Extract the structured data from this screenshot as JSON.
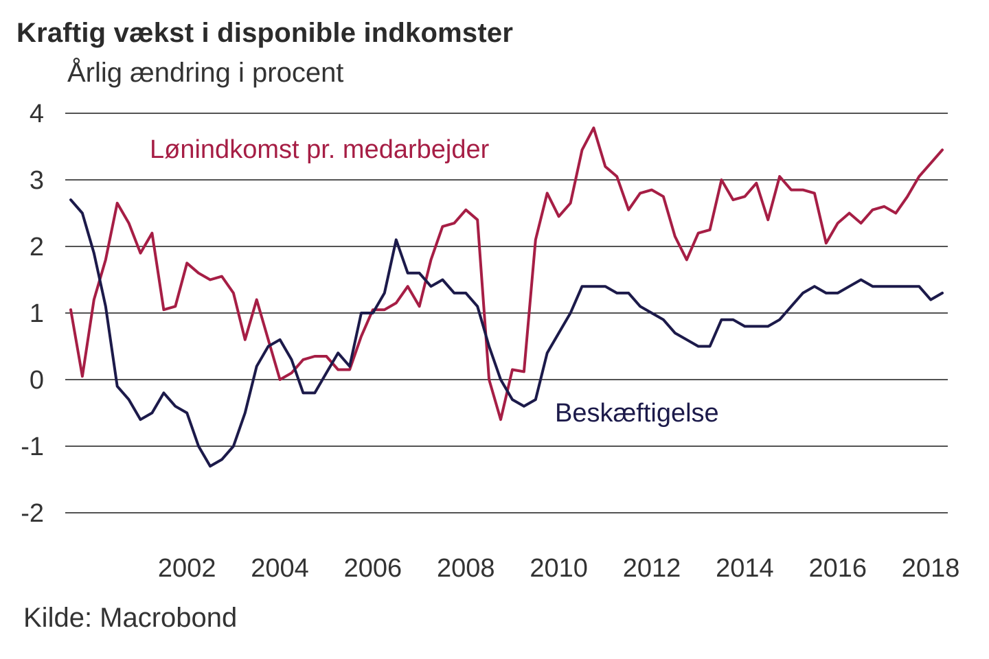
{
  "chart_data": {
    "type": "line",
    "title": "Kraftig vækst i disponible indkomster",
    "subtitle": "Årlig ændring i procent",
    "source": "Kilde: Macrobond",
    "xlabel": "",
    "ylabel": "",
    "ylim": [
      -2,
      4
    ],
    "xlim": [
      2000.0,
      2018.75
    ],
    "y_ticks": [
      "4",
      "3",
      "2",
      "1",
      "0",
      "-1",
      "-2"
    ],
    "x_ticks": [
      "2002",
      "2004",
      "2006",
      "2008",
      "2010",
      "2012",
      "2014",
      "2016",
      "2018"
    ],
    "grid": true,
    "colors": {
      "lonindkomst": "#a61e45",
      "beskaeftigelse": "#1c1a4a",
      "grid": "#1a1a1a"
    },
    "series": [
      {
        "name": "Lønindkomst pr. medarbejder",
        "color": "#a61e45",
        "x": [
          2000.0,
          2000.25,
          2000.5,
          2000.75,
          2001.0,
          2001.25,
          2001.5,
          2001.75,
          2002.0,
          2002.25,
          2002.5,
          2002.75,
          2003.0,
          2003.25,
          2003.5,
          2003.75,
          2004.0,
          2004.25,
          2004.5,
          2004.75,
          2005.0,
          2005.25,
          2005.5,
          2005.75,
          2006.0,
          2006.25,
          2006.5,
          2006.75,
          2007.0,
          2007.25,
          2007.5,
          2007.75,
          2008.0,
          2008.25,
          2008.5,
          2008.75,
          2009.0,
          2009.25,
          2009.5,
          2009.75,
          2010.0,
          2010.25,
          2010.5,
          2010.75,
          2011.0,
          2011.25,
          2011.5,
          2011.75,
          2012.0,
          2012.25,
          2012.5,
          2012.75,
          2013.0,
          2013.25,
          2013.5,
          2013.75,
          2014.0,
          2014.25,
          2014.5,
          2014.75,
          2015.0,
          2015.25,
          2015.5,
          2015.75,
          2016.0,
          2016.25,
          2016.5,
          2016.75,
          2017.0,
          2017.25,
          2017.5,
          2017.75,
          2018.0,
          2018.25,
          2018.5,
          2018.75
        ],
        "values": [
          1.05,
          0.05,
          1.2,
          1.8,
          2.65,
          2.35,
          1.9,
          2.2,
          1.05,
          1.1,
          1.75,
          1.6,
          1.5,
          1.55,
          1.3,
          0.6,
          1.2,
          0.6,
          0.0,
          0.1,
          0.3,
          0.35,
          0.35,
          0.15,
          0.15,
          0.65,
          1.05,
          1.05,
          1.15,
          1.4,
          1.1,
          1.8,
          2.3,
          2.35,
          2.55,
          2.4,
          0.0,
          -0.6,
          0.15,
          0.12,
          2.1,
          2.8,
          2.45,
          2.65,
          3.45,
          3.78,
          3.2,
          3.05,
          2.55,
          2.8,
          2.85,
          2.75,
          2.15,
          1.8,
          2.2,
          2.25,
          3.0,
          2.7,
          2.75,
          2.95,
          2.4,
          3.05,
          2.85,
          2.85,
          2.8,
          2.05,
          2.35,
          2.5,
          2.35,
          2.55,
          2.6,
          2.5,
          2.75,
          3.05,
          3.25,
          3.45
        ]
      },
      {
        "name": "Beskæftigelse",
        "color": "#1c1a4a",
        "x": [
          2000.0,
          2000.25,
          2000.5,
          2000.75,
          2001.0,
          2001.25,
          2001.5,
          2001.75,
          2002.0,
          2002.25,
          2002.5,
          2002.75,
          2003.0,
          2003.25,
          2003.5,
          2003.75,
          2004.0,
          2004.25,
          2004.5,
          2004.75,
          2005.0,
          2005.25,
          2005.5,
          2005.75,
          2006.0,
          2006.25,
          2006.5,
          2006.75,
          2007.0,
          2007.25,
          2007.5,
          2007.75,
          2008.0,
          2008.25,
          2008.5,
          2008.75,
          2009.0,
          2009.25,
          2009.5,
          2009.75,
          2010.0,
          2010.25,
          2010.5,
          2010.75,
          2011.0,
          2011.25,
          2011.5,
          2011.75,
          2012.0,
          2012.25,
          2012.5,
          2012.75,
          2013.0,
          2013.25,
          2013.5,
          2013.75,
          2014.0,
          2014.25,
          2014.5,
          2014.75,
          2015.0,
          2015.25,
          2015.5,
          2015.75,
          2016.0,
          2016.25,
          2016.5,
          2016.75,
          2017.0,
          2017.25,
          2017.5,
          2017.75,
          2018.0,
          2018.25,
          2018.5,
          2018.75
        ],
        "values": [
          2.7,
          2.5,
          1.9,
          1.1,
          -0.1,
          -0.3,
          -0.6,
          -0.5,
          -0.2,
          -0.4,
          -0.5,
          -1.0,
          -1.3,
          -1.2,
          -1.0,
          -0.5,
          0.2,
          0.5,
          0.6,
          0.3,
          -0.2,
          -0.2,
          0.1,
          0.4,
          0.2,
          1.0,
          1.0,
          1.3,
          2.1,
          1.6,
          1.6,
          1.4,
          1.5,
          1.3,
          1.3,
          1.1,
          0.5,
          0.0,
          -0.3,
          -0.4,
          -0.3,
          0.4,
          0.7,
          1.0,
          1.4,
          1.4,
          1.4,
          1.3,
          1.3,
          1.1,
          1.0,
          0.9,
          0.7,
          0.6,
          0.5,
          0.5,
          0.9,
          0.9,
          0.8,
          0.8,
          0.8,
          0.9,
          1.1,
          1.3,
          1.4,
          1.3,
          1.3,
          1.4,
          1.5,
          1.4,
          1.4,
          1.4,
          1.4,
          1.4,
          1.2,
          1.3
        ]
      }
    ]
  }
}
